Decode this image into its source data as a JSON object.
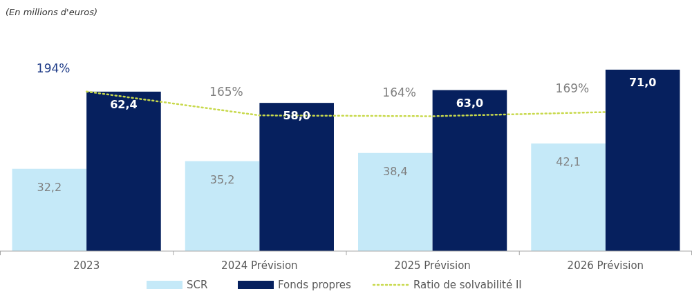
{
  "chart_data": {
    "type": "bar",
    "subtitle": "(En millions d'euros)",
    "categories": [
      "2023",
      "2024 Prévision",
      "2025 Prévision",
      "2026 Prévision"
    ],
    "series": [
      {
        "name": "SCR",
        "color": "#c5e9f8",
        "values": [
          32.2,
          35.2,
          38.4,
          42.1
        ],
        "value_labels": [
          "32,2",
          "35,2",
          "38,4",
          "42,1"
        ]
      },
      {
        "name": "Fonds propres",
        "color": "#06205e",
        "values": [
          62.4,
          58.0,
          63.0,
          71.0
        ],
        "value_labels": [
          "62,4",
          "58,0",
          "63,0",
          "71,0"
        ]
      },
      {
        "name": "Ratio de solvabilité II",
        "type": "line",
        "axis": "y2",
        "color": "#c8d94c",
        "line_style": "dotted",
        "marker": "none",
        "values": [
          194,
          165,
          164,
          169
        ],
        "value_labels": [
          "194%",
          "165%",
          "164%",
          "169%"
        ]
      }
    ],
    "legend": "bottom",
    "grid": false
  }
}
